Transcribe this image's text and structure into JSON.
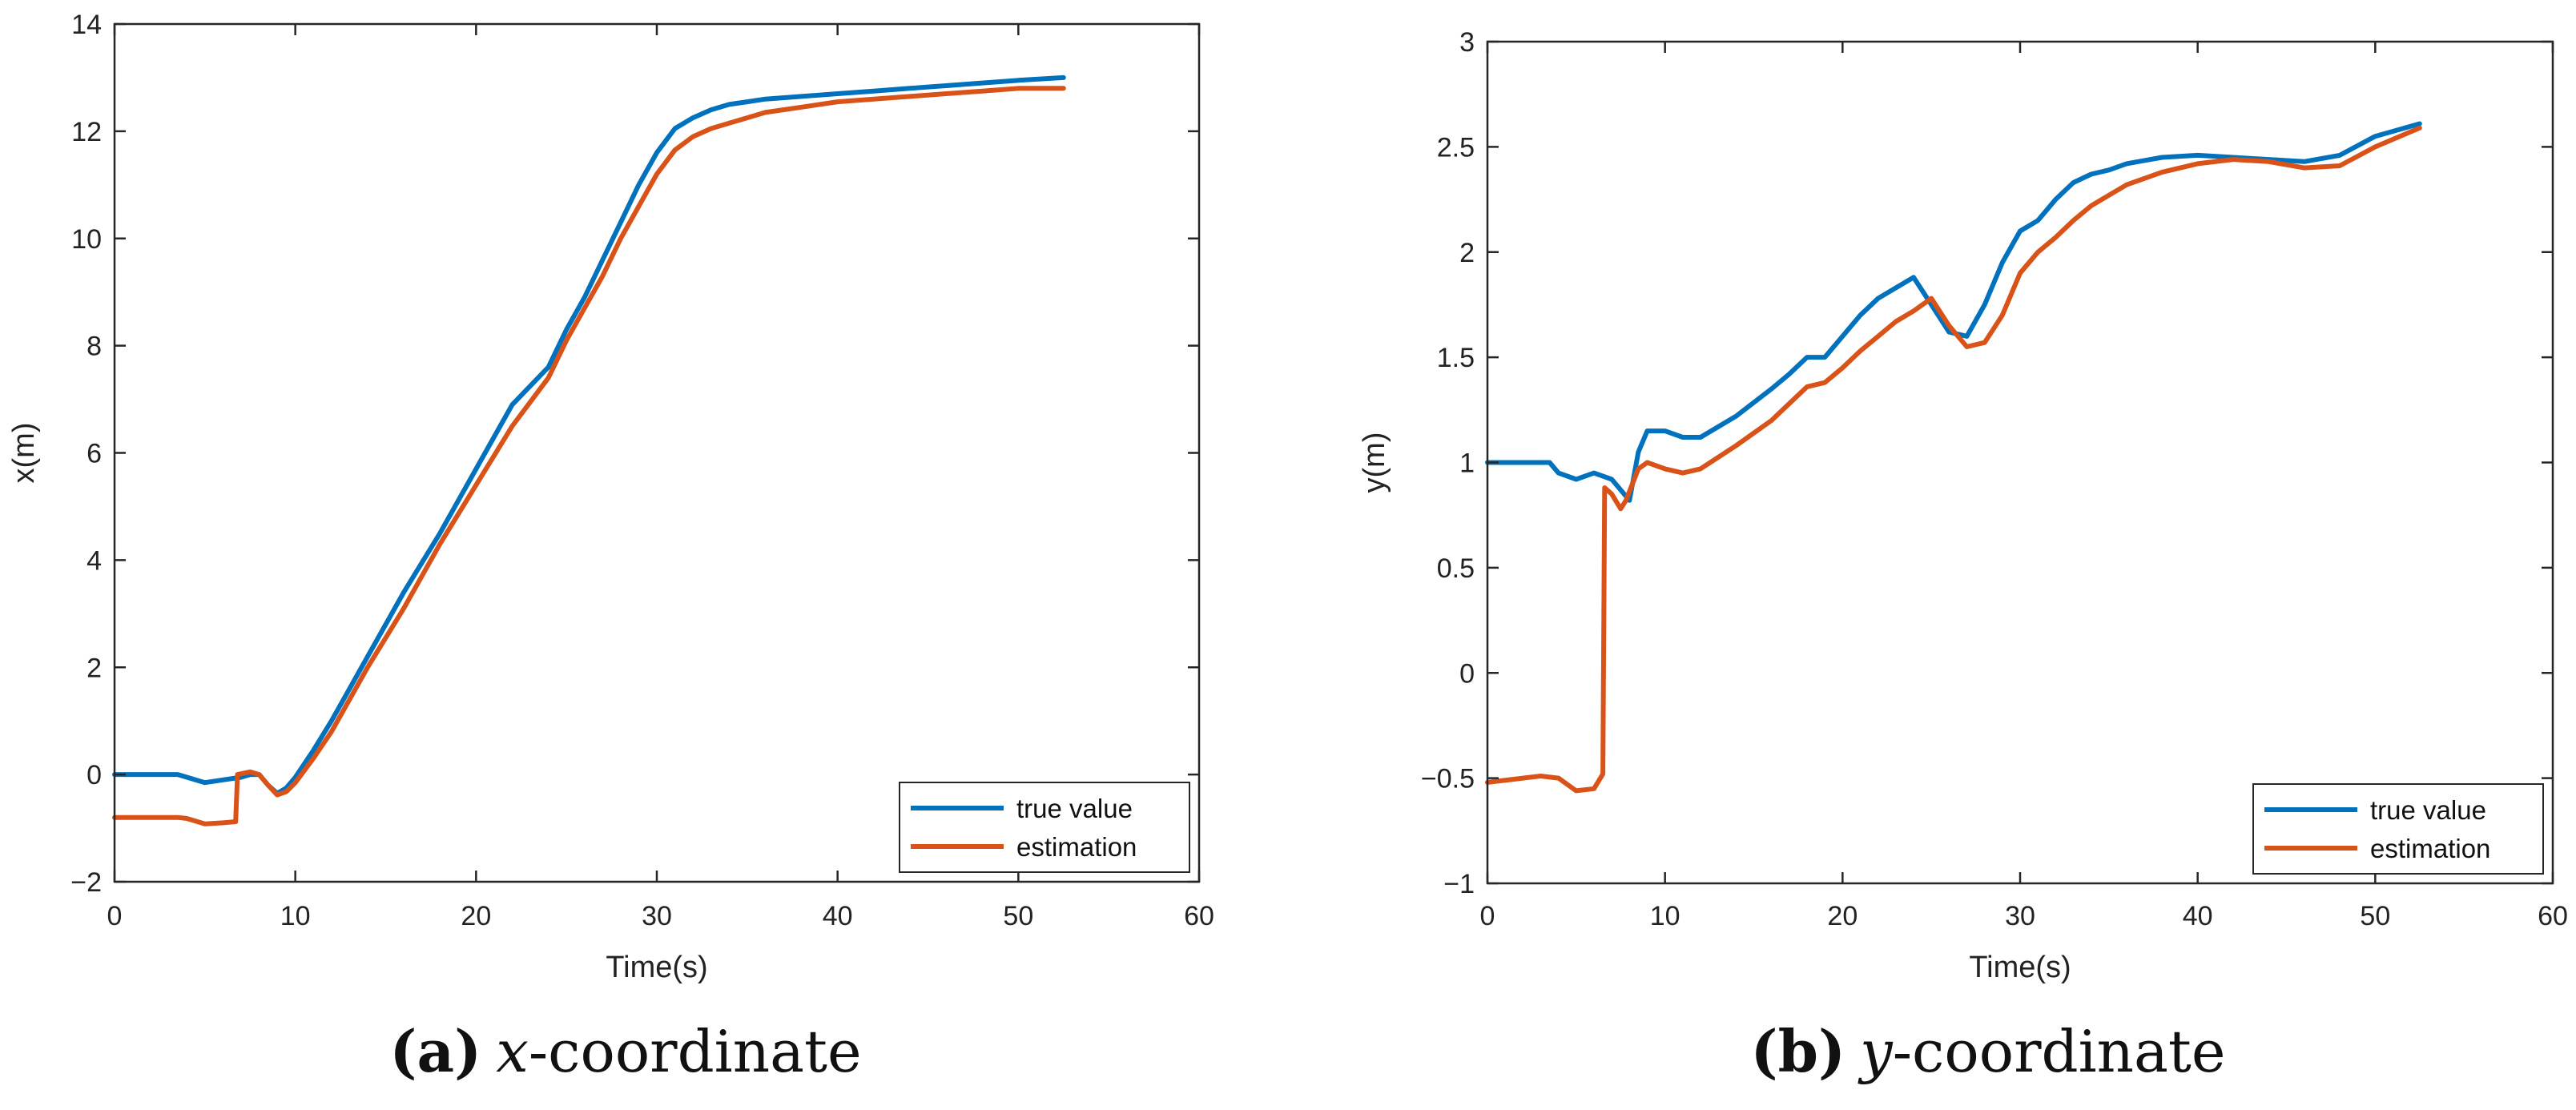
{
  "colors": {
    "true_value": "#0072BD",
    "estimation": "#D95319",
    "axes": "#262626"
  },
  "chart_data": [
    {
      "type": "line",
      "panel": "a",
      "caption_tag": "(a)",
      "caption_var": "x",
      "caption_rest": "-coordinate",
      "xlabel": "Time(s)",
      "ylabel": "x(m)",
      "xlim": [
        0,
        60
      ],
      "ylim": [
        -2,
        14
      ],
      "xticks": [
        0,
        10,
        20,
        30,
        40,
        50,
        60
      ],
      "yticks": [
        -2,
        0,
        2,
        4,
        6,
        8,
        10,
        12,
        14
      ],
      "xtick_labels": [
        "0",
        "10",
        "20",
        "30",
        "40",
        "50",
        "60"
      ],
      "ytick_labels": [
        "−2",
        "0",
        "2",
        "4",
        "6",
        "8",
        "10",
        "12",
        "14"
      ],
      "legend_position": "bottom-right",
      "legend": [
        "true value",
        "estimation"
      ],
      "series": [
        {
          "name": "true value",
          "x": [
            0,
            3.5,
            4,
            5,
            6,
            7,
            7.5,
            8,
            8.5,
            9,
            9.5,
            10,
            11,
            12,
            14,
            16,
            18,
            20,
            22,
            24,
            25,
            26,
            27,
            28,
            29,
            30,
            31,
            32,
            33,
            34,
            35,
            36,
            38,
            40,
            42,
            44,
            46,
            48,
            50,
            52.5
          ],
          "y": [
            0,
            0,
            -0.05,
            -0.15,
            -0.1,
            -0.05,
            0,
            0,
            -0.2,
            -0.35,
            -0.25,
            -0.05,
            0.45,
            1.0,
            2.2,
            3.4,
            4.5,
            5.7,
            6.9,
            7.6,
            8.3,
            8.9,
            9.6,
            10.3,
            11.0,
            11.6,
            12.05,
            12.25,
            12.4,
            12.5,
            12.55,
            12.6,
            12.65,
            12.7,
            12.75,
            12.8,
            12.85,
            12.9,
            12.95,
            13.0
          ]
        },
        {
          "name": "estimation",
          "x": [
            0,
            3.5,
            4,
            5,
            6,
            6.7,
            6.8,
            7.5,
            8,
            8.5,
            9,
            9.5,
            10,
            11,
            12,
            14,
            16,
            18,
            20,
            22,
            24,
            25,
            26,
            27,
            28,
            29,
            30,
            31,
            32,
            33,
            34,
            35,
            36,
            38,
            40,
            42,
            44,
            46,
            48,
            50,
            52.5
          ],
          "y": [
            -0.8,
            -0.8,
            -0.82,
            -0.92,
            -0.9,
            -0.88,
            0,
            0.05,
            0,
            -0.2,
            -0.38,
            -0.32,
            -0.15,
            0.3,
            0.8,
            2.0,
            3.1,
            4.3,
            5.4,
            6.5,
            7.4,
            8.1,
            8.7,
            9.3,
            10.0,
            10.6,
            11.2,
            11.65,
            11.9,
            12.05,
            12.15,
            12.25,
            12.35,
            12.45,
            12.55,
            12.6,
            12.65,
            12.7,
            12.75,
            12.8,
            12.8
          ]
        }
      ]
    },
    {
      "type": "line",
      "panel": "b",
      "caption_tag": "(b)",
      "caption_var": "y",
      "caption_rest": "-coordinate",
      "xlabel": "Time(s)",
      "ylabel": "y(m)",
      "xlim": [
        0,
        60
      ],
      "ylim": [
        -1,
        3
      ],
      "xticks": [
        0,
        10,
        20,
        30,
        40,
        50,
        60
      ],
      "yticks": [
        -1,
        -0.5,
        0,
        0.5,
        1,
        1.5,
        2,
        2.5,
        3
      ],
      "xtick_labels": [
        "0",
        "10",
        "20",
        "30",
        "40",
        "50",
        "60"
      ],
      "ytick_labels": [
        "−1",
        "−0.5",
        "0",
        "0.5",
        "1",
        "1.5",
        "2",
        "2.5",
        "3"
      ],
      "legend_position": "bottom-right",
      "legend": [
        "true value",
        "estimation"
      ],
      "series": [
        {
          "name": "true value",
          "x": [
            0,
            3.5,
            4,
            5,
            6,
            7,
            8,
            8.5,
            9,
            10,
            11,
            12,
            14,
            16,
            17,
            18,
            19,
            20,
            21,
            22,
            23,
            24,
            25,
            26,
            27,
            28,
            29,
            30,
            31,
            32,
            33,
            34,
            35,
            36,
            38,
            40,
            42,
            44,
            46,
            48,
            50,
            52.5
          ],
          "y": [
            1.0,
            1.0,
            0.95,
            0.92,
            0.95,
            0.92,
            0.82,
            1.05,
            1.15,
            1.15,
            1.12,
            1.12,
            1.22,
            1.35,
            1.42,
            1.5,
            1.5,
            1.6,
            1.7,
            1.78,
            1.83,
            1.88,
            1.75,
            1.62,
            1.6,
            1.75,
            1.95,
            2.1,
            2.15,
            2.25,
            2.33,
            2.37,
            2.39,
            2.42,
            2.45,
            2.46,
            2.45,
            2.44,
            2.43,
            2.46,
            2.55,
            2.61
          ]
        },
        {
          "name": "estimation",
          "x": [
            0,
            2,
            3,
            4,
            5,
            6,
            6.5,
            6.6,
            7,
            7.5,
            7.8,
            8.5,
            9,
            10,
            11,
            12,
            14,
            16,
            17,
            18,
            19,
            20,
            21,
            22,
            23,
            24,
            25,
            26,
            27,
            28,
            29,
            30,
            31,
            32,
            33,
            34,
            35,
            36,
            38,
            40,
            42,
            44,
            46,
            48,
            50,
            52.5
          ],
          "y": [
            -0.52,
            -0.5,
            -0.49,
            -0.5,
            -0.56,
            -0.55,
            -0.48,
            0.88,
            0.85,
            0.78,
            0.82,
            0.97,
            1.0,
            0.97,
            0.95,
            0.97,
            1.08,
            1.2,
            1.28,
            1.36,
            1.38,
            1.45,
            1.53,
            1.6,
            1.67,
            1.72,
            1.78,
            1.65,
            1.55,
            1.57,
            1.7,
            1.9,
            2.0,
            2.07,
            2.15,
            2.22,
            2.27,
            2.32,
            2.38,
            2.42,
            2.44,
            2.43,
            2.4,
            2.41,
            2.5,
            2.59
          ]
        }
      ]
    }
  ]
}
